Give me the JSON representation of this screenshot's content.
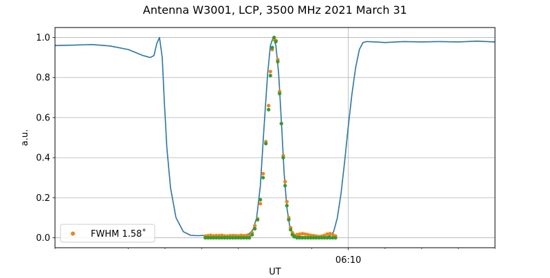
{
  "chart_data": {
    "type": "line",
    "title": "Antenna W3001, LCP, 3500 MHz 2021 March 31",
    "xlabel": "UT",
    "ylabel": "a.u.",
    "x_unit": "minutes after 06:00 UT",
    "xlim": [
      -6.0,
      18.0
    ],
    "ylim": [
      -0.05,
      1.05
    ],
    "y_ticks": [
      0.0,
      0.2,
      0.4,
      0.6,
      0.8,
      1.0
    ],
    "y_tick_labels": [
      "0.0",
      "0.2",
      "0.4",
      "0.6",
      "0.8",
      "1.0"
    ],
    "x_major_ticks": [
      10.0
    ],
    "x_major_tick_labels": [
      "06:10"
    ],
    "x_minor_ticks": [
      -6,
      -2,
      0,
      2,
      4,
      8,
      12,
      14,
      16,
      18
    ],
    "grid": true,
    "legend": {
      "placement": "lower-left"
    },
    "colors": {
      "line": "#1f77b4",
      "orange": "#ff7f0e",
      "green": "#2ca02c",
      "grid": "#b0b0b0"
    },
    "series": [
      {
        "kind": "line",
        "x": [
          -6.0,
          -5.0,
          -4.0,
          -3.0,
          -2.0,
          -1.2,
          -0.8,
          -0.6,
          -0.45,
          -0.3,
          -0.15,
          -0.05,
          0.1,
          0.3,
          0.6,
          1.0,
          1.4,
          1.8,
          2.2,
          2.6,
          3.0,
          3.4,
          3.8,
          4.2,
          4.6,
          4.8,
          5.0,
          5.2,
          5.4,
          5.6,
          5.75,
          5.9,
          6.05,
          6.2,
          6.35,
          6.5,
          6.65,
          6.8,
          6.95,
          7.1,
          7.25,
          7.4,
          7.6,
          7.8,
          8.0,
          8.4,
          8.8,
          9.0,
          9.2,
          9.4,
          9.6,
          9.8,
          10.0,
          10.2,
          10.4,
          10.6,
          10.8,
          11.0,
          11.5,
          12.0,
          13.0,
          14.0,
          15.0,
          16.0,
          17.0,
          18.0
        ],
        "y": [
          0.96,
          0.962,
          0.965,
          0.958,
          0.94,
          0.91,
          0.9,
          0.91,
          0.97,
          1.0,
          0.9,
          0.7,
          0.45,
          0.25,
          0.1,
          0.03,
          0.012,
          0.01,
          0.012,
          0.01,
          0.011,
          0.01,
          0.012,
          0.01,
          0.02,
          0.04,
          0.1,
          0.26,
          0.55,
          0.82,
          0.96,
          1.0,
          0.96,
          0.82,
          0.58,
          0.32,
          0.15,
          0.06,
          0.025,
          0.012,
          0.008,
          0.006,
          0.005,
          0.004,
          0.004,
          0.003,
          0.004,
          0.01,
          0.03,
          0.1,
          0.22,
          0.38,
          0.56,
          0.72,
          0.85,
          0.94,
          0.975,
          0.98,
          0.978,
          0.975,
          0.98,
          0.978,
          0.98,
          0.978,
          0.982,
          0.978
        ]
      },
      {
        "kind": "points",
        "name": "FWHM 1.58˚",
        "x": [
          2.2,
          2.35,
          2.5,
          2.65,
          2.8,
          2.95,
          3.1,
          3.25,
          3.4,
          3.55,
          3.7,
          3.85,
          4.0,
          4.15,
          4.3,
          4.45,
          4.6,
          4.75,
          4.9,
          5.05,
          5.2,
          5.35,
          5.5,
          5.65,
          5.75,
          5.85,
          5.95,
          6.05,
          6.15,
          6.25,
          6.35,
          6.45,
          6.55,
          6.65,
          6.75,
          6.85,
          6.95,
          7.05,
          7.2,
          7.35,
          7.5,
          7.65,
          7.8,
          7.95,
          8.1,
          8.25,
          8.4,
          8.55,
          8.7,
          8.85,
          9.0,
          9.15,
          9.3
        ],
        "y": [
          0.008,
          0.01,
          0.012,
          0.009,
          0.011,
          0.01,
          0.012,
          0.009,
          0.008,
          0.01,
          0.011,
          0.01,
          0.009,
          0.012,
          0.01,
          0.011,
          0.01,
          0.025,
          0.06,
          0.095,
          0.17,
          0.32,
          0.48,
          0.66,
          0.83,
          0.94,
          0.99,
          0.985,
          0.89,
          0.73,
          0.57,
          0.41,
          0.28,
          0.18,
          0.1,
          0.05,
          0.025,
          0.012,
          0.015,
          0.018,
          0.02,
          0.018,
          0.015,
          0.012,
          0.01,
          0.008,
          0.006,
          0.008,
          0.012,
          0.018,
          0.02,
          0.016,
          0.008
        ]
      },
      {
        "kind": "points",
        "x": [
          2.2,
          2.35,
          2.5,
          2.65,
          2.8,
          2.95,
          3.1,
          3.25,
          3.4,
          3.55,
          3.7,
          3.85,
          4.0,
          4.15,
          4.3,
          4.45,
          4.6,
          4.75,
          4.9,
          5.05,
          5.2,
          5.35,
          5.5,
          5.65,
          5.75,
          5.85,
          5.95,
          6.05,
          6.15,
          6.25,
          6.35,
          6.45,
          6.55,
          6.65,
          6.75,
          6.85,
          6.95,
          7.05,
          7.2,
          7.35,
          7.5,
          7.65,
          7.8,
          7.95,
          8.1,
          8.25,
          8.4,
          8.55,
          8.7,
          8.85,
          9.0,
          9.15,
          9.3
        ],
        "y": [
          0.0,
          0.0,
          0.0,
          0.0,
          0.0,
          0.0,
          0.0,
          0.0,
          0.0,
          0.0,
          0.0,
          0.0,
          0.0,
          0.0,
          0.0,
          0.0,
          0.0,
          0.015,
          0.045,
          0.09,
          0.19,
          0.3,
          0.47,
          0.64,
          0.81,
          0.95,
          1.0,
          0.98,
          0.88,
          0.72,
          0.57,
          0.4,
          0.26,
          0.16,
          0.09,
          0.04,
          0.015,
          0.005,
          0.0,
          0.0,
          0.0,
          0.0,
          0.0,
          0.0,
          0.0,
          0.0,
          0.0,
          0.0,
          0.0,
          0.0,
          0.0,
          0.0,
          0.0
        ]
      }
    ]
  }
}
